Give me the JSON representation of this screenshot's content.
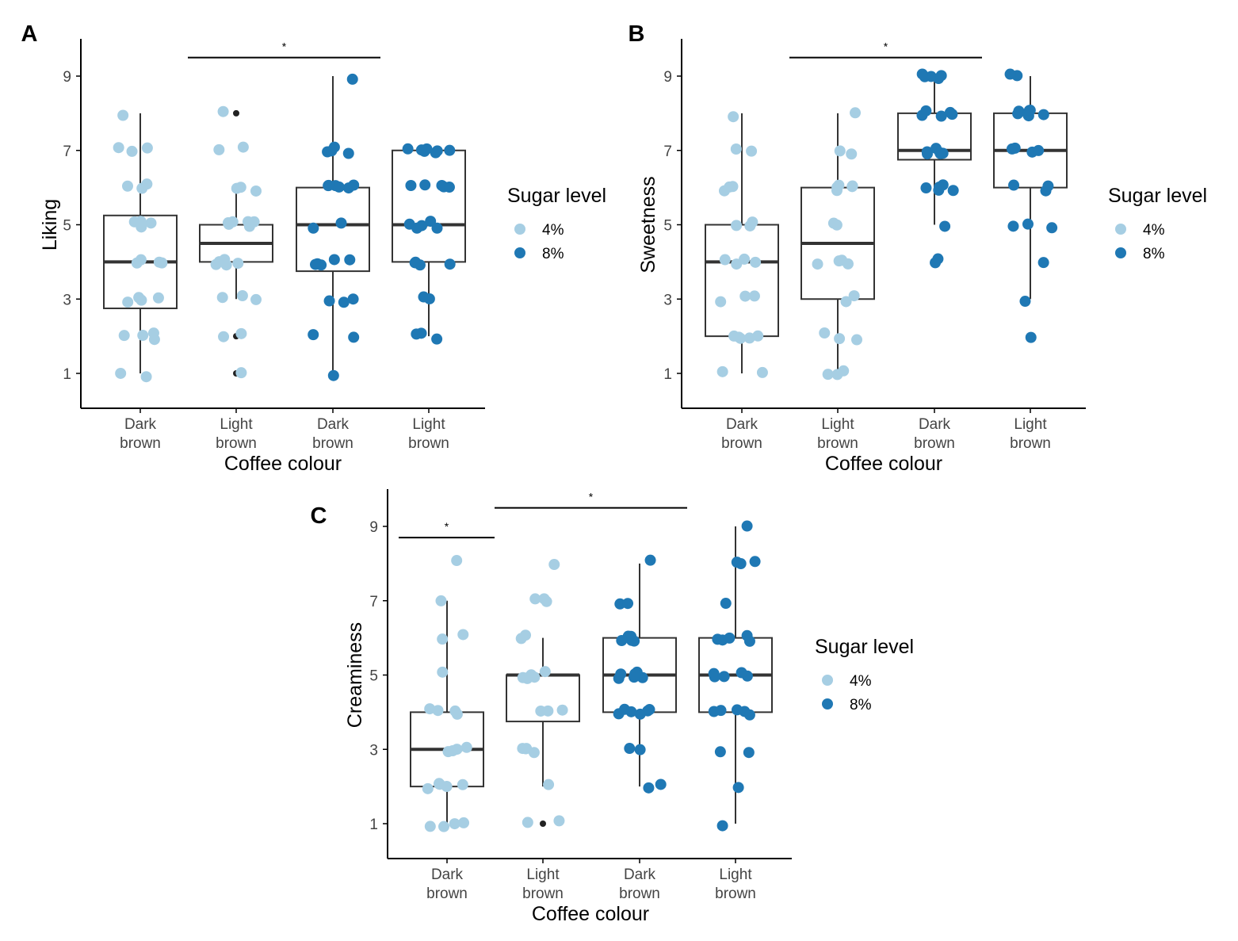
{
  "colors": {
    "sugar_4": "#a6cee3",
    "sugar_8": "#1f78b4",
    "box_stroke": "#333333",
    "outlier": "#222222",
    "axis": "#000000"
  },
  "chart_data": [
    {
      "id": "A",
      "panel_label": "A",
      "type": "box",
      "xlabel": "Coffee colour",
      "ylabel": "Liking",
      "ylim": [
        0,
        10
      ],
      "yticks": [
        1,
        3,
        5,
        7,
        9
      ],
      "categories": [
        {
          "line1": "Dark",
          "line2": "brown",
          "sugar": "4%"
        },
        {
          "line1": "Light",
          "line2": "brown",
          "sugar": "4%"
        },
        {
          "line1": "Dark",
          "line2": "brown",
          "sugar": "8%"
        },
        {
          "line1": "Light",
          "line2": "brown",
          "sugar": "8%"
        }
      ],
      "boxes": [
        {
          "min": 1,
          "q1": 2.75,
          "median": 4,
          "q3": 5.25,
          "max": 8,
          "outliers": []
        },
        {
          "min": 3,
          "q1": 4,
          "median": 4.5,
          "q3": 5,
          "max": 6,
          "outliers": [
            8,
            2,
            1
          ]
        },
        {
          "min": 1,
          "q1": 3.75,
          "median": 5,
          "q3": 6,
          "max": 9,
          "outliers": []
        },
        {
          "min": 2,
          "q1": 4,
          "median": 5,
          "q3": 7,
          "max": 7,
          "outliers": []
        }
      ],
      "points": [
        [
          8,
          7,
          7,
          7,
          6,
          6,
          6,
          5,
          5,
          5,
          5,
          4,
          4,
          4,
          4,
          3,
          3,
          3,
          3,
          2,
          2,
          2,
          2,
          1,
          1
        ],
        [
          8,
          7,
          7,
          6,
          6,
          6,
          5,
          5,
          5,
          5,
          5,
          5,
          4,
          4,
          4,
          4,
          4,
          3,
          3,
          3,
          2,
          2,
          1
        ],
        [
          9,
          7,
          7,
          7,
          7,
          6,
          6,
          6,
          6,
          6,
          6,
          5,
          5,
          4,
          4,
          4,
          4,
          4,
          3,
          3,
          3,
          2,
          2,
          1
        ],
        [
          7,
          7,
          7,
          7,
          7,
          7,
          7,
          6,
          6,
          6,
          6,
          6,
          5,
          5,
          5,
          5,
          5,
          4,
          4,
          4,
          4,
          3,
          3,
          2,
          2,
          2
        ]
      ],
      "significance": [
        {
          "from": 1,
          "to": 3,
          "level": 9.5,
          "label": "*"
        }
      ],
      "legend": {
        "title": "Sugar level",
        "items": [
          "4%",
          "8%"
        ]
      }
    },
    {
      "id": "B",
      "panel_label": "B",
      "type": "box",
      "xlabel": "Coffee colour",
      "ylabel": "Sweetness",
      "ylim": [
        0,
        10
      ],
      "yticks": [
        1,
        3,
        5,
        7,
        9
      ],
      "categories": [
        {
          "line1": "Dark",
          "line2": "brown",
          "sugar": "4%"
        },
        {
          "line1": "Light",
          "line2": "brown",
          "sugar": "4%"
        },
        {
          "line1": "Dark",
          "line2": "brown",
          "sugar": "8%"
        },
        {
          "line1": "Light",
          "line2": "brown",
          "sugar": "8%"
        }
      ],
      "boxes": [
        {
          "min": 1,
          "q1": 2,
          "median": 4,
          "q3": 5,
          "max": 8,
          "outliers": []
        },
        {
          "min": 1,
          "q1": 3,
          "median": 4.5,
          "q3": 6,
          "max": 8,
          "outliers": []
        },
        {
          "min": 5,
          "q1": 6.75,
          "median": 7,
          "q3": 8,
          "max": 9,
          "outliers": [
            4
          ]
        },
        {
          "min": 3,
          "q1": 6,
          "median": 7,
          "q3": 8,
          "max": 9,
          "outliers": [
            2
          ]
        }
      ],
      "points": [
        [
          8,
          7,
          7,
          6,
          6,
          6,
          5,
          5,
          5,
          4,
          4,
          4,
          4,
          3,
          3,
          3,
          2,
          2,
          2,
          2,
          2,
          1,
          1
        ],
        [
          8,
          7,
          7,
          6,
          6,
          6,
          6,
          6,
          5,
          5,
          4,
          4,
          4,
          4,
          3,
          3,
          2,
          2,
          2,
          1,
          1,
          1
        ],
        [
          9,
          9,
          9,
          9,
          9,
          8,
          8,
          8,
          8,
          8,
          7,
          7,
          7,
          7,
          7,
          7,
          6,
          6,
          6,
          6,
          6,
          5,
          4,
          4
        ],
        [
          9,
          9,
          8,
          8,
          8,
          8,
          8,
          8,
          8,
          7,
          7,
          7,
          7,
          6,
          6,
          6,
          5,
          5,
          5,
          4,
          3,
          2
        ]
      ],
      "significance": [
        {
          "from": 1,
          "to": 3,
          "level": 9.5,
          "label": "*"
        }
      ],
      "legend": {
        "title": "Sugar level",
        "items": [
          "4%",
          "8%"
        ]
      }
    },
    {
      "id": "C",
      "panel_label": "C",
      "type": "box",
      "xlabel": "Coffee colour",
      "ylabel": "Creaminess",
      "ylim": [
        0,
        10
      ],
      "yticks": [
        1,
        3,
        5,
        7,
        9
      ],
      "categories": [
        {
          "line1": "Dark",
          "line2": "brown",
          "sugar": "4%"
        },
        {
          "line1": "Light",
          "line2": "brown",
          "sugar": "4%"
        },
        {
          "line1": "Dark",
          "line2": "brown",
          "sugar": "8%"
        },
        {
          "line1": "Light",
          "line2": "brown",
          "sugar": "8%"
        }
      ],
      "boxes": [
        {
          "min": 1,
          "q1": 2,
          "median": 3,
          "q3": 4,
          "max": 7,
          "outliers": []
        },
        {
          "min": 2,
          "q1": 3.75,
          "median": 5,
          "q3": 5,
          "max": 6,
          "outliers": [
            1
          ]
        },
        {
          "min": 2,
          "q1": 4,
          "median": 5,
          "q3": 6,
          "max": 8,
          "outliers": []
        },
        {
          "min": 1,
          "q1": 4,
          "median": 5,
          "q3": 6,
          "max": 9,
          "outliers": []
        }
      ],
      "points": [
        [
          8,
          7,
          6,
          6,
          5,
          4,
          4,
          4,
          4,
          3,
          3,
          3,
          3,
          2,
          2,
          2,
          2,
          2,
          2,
          1,
          1,
          1,
          1
        ],
        [
          8,
          7,
          7,
          7,
          6,
          6,
          5,
          5,
          5,
          5,
          5,
          5,
          4,
          4,
          4,
          3,
          3,
          3,
          3,
          2,
          1,
          1
        ],
        [
          8,
          7,
          7,
          6,
          6,
          6,
          6,
          6,
          5,
          5,
          5,
          5,
          5,
          5,
          4,
          4,
          4,
          4,
          4,
          4,
          3,
          3,
          2,
          2
        ],
        [
          9,
          8,
          8,
          8,
          7,
          6,
          6,
          6,
          6,
          6,
          5,
          5,
          5,
          5,
          5,
          4,
          4,
          4,
          4,
          4,
          3,
          3,
          2,
          1
        ]
      ],
      "significance": [
        {
          "from": 0,
          "to": 1,
          "level": 8.7,
          "label": "*"
        },
        {
          "from": 1,
          "to": 3,
          "level": 9.5,
          "label": "*"
        }
      ],
      "legend": {
        "title": "Sugar level",
        "items": [
          "4%",
          "8%"
        ]
      }
    }
  ]
}
